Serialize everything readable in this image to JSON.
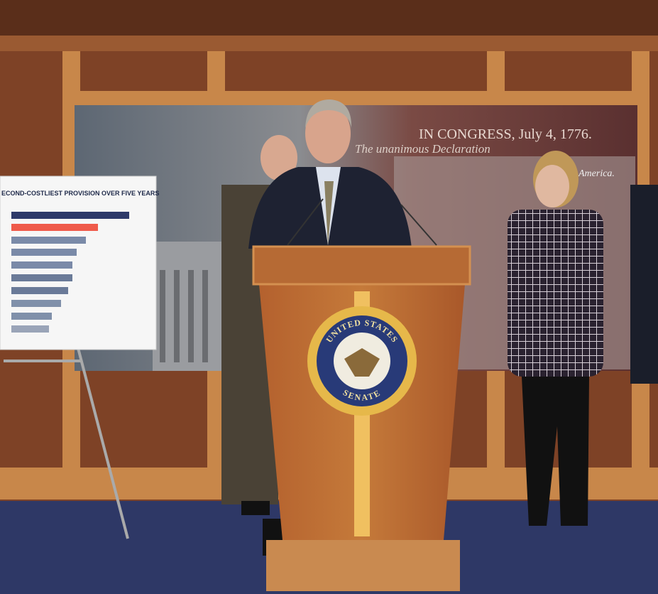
{
  "poster": {
    "title": "ECOND-COSTLIEST PROVISION OVER FIVE YEARS"
  },
  "backdrop": {
    "heading": "IN CONGRESS, July 4, 1776.",
    "line": "The unanimous Declaration",
    "ending": "America."
  },
  "seal": {
    "top": "UNITED STATES",
    "bottom": "SENATE"
  }
}
